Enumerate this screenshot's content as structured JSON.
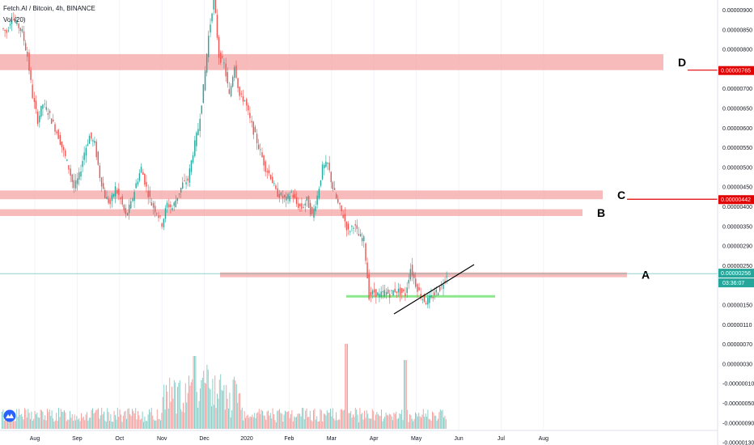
{
  "legend": {
    "title": "Fetch.AI / Bitcoin, 4h, BINANCE",
    "volume": "Vol (20)"
  },
  "colors": {
    "up": "#26a69a",
    "down": "#ef5350",
    "zone": "#f4a4a4",
    "green_zone": "#8de88d",
    "current_price": "#26a69a",
    "level_line": "#e00000"
  },
  "chart_data": {
    "type": "candlestick",
    "price_axis": {
      "ticks": [
        "0.00000900",
        "0.00000850",
        "0.00000800",
        "0.00000750",
        "0.00000700",
        "0.00000650",
        "0.00000600",
        "0.00000550",
        "0.00000500",
        "0.00000450",
        "0.00000400",
        "0.00000350",
        "0.00000290",
        "0.00000250",
        "0.00000190",
        "0.00000150",
        "0.00000110",
        "0.00000070",
        "0.00000030",
        "-0.00000010",
        "-0.00000050",
        "-0.00000090",
        "-0.00000130"
      ]
    },
    "time_axis": {
      "ticks": [
        "Aug",
        "Sep",
        "Oct",
        "Nov",
        "Dec",
        "2020",
        "Feb",
        "Mar",
        "Apr",
        "May",
        "Jun",
        "Jul",
        "Aug"
      ]
    },
    "price_path": [
      [
        0,
        870
      ],
      [
        2,
        860
      ],
      [
        4,
        900
      ],
      [
        6,
        880
      ],
      [
        8,
        860
      ],
      [
        10,
        800
      ],
      [
        12,
        700
      ],
      [
        14,
        640
      ],
      [
        16,
        680
      ],
      [
        18,
        660
      ],
      [
        20,
        630
      ],
      [
        22,
        600
      ],
      [
        24,
        560
      ],
      [
        26,
        520
      ],
      [
        28,
        470
      ],
      [
        30,
        500
      ],
      [
        32,
        560
      ],
      [
        34,
        600
      ],
      [
        36,
        580
      ],
      [
        38,
        500
      ],
      [
        40,
        450
      ],
      [
        42,
        430
      ],
      [
        44,
        470
      ],
      [
        46,
        440
      ],
      [
        48,
        400
      ],
      [
        50,
        430
      ],
      [
        52,
        480
      ],
      [
        54,
        520
      ],
      [
        56,
        470
      ],
      [
        58,
        430
      ],
      [
        60,
        410
      ],
      [
        62,
        380
      ],
      [
        64,
        430
      ],
      [
        66,
        420
      ],
      [
        68,
        450
      ],
      [
        70,
        480
      ],
      [
        72,
        490
      ],
      [
        74,
        560
      ],
      [
        76,
        620
      ],
      [
        78,
        720
      ],
      [
        80,
        850
      ],
      [
        82,
        950
      ],
      [
        84,
        800
      ],
      [
        86,
        780
      ],
      [
        88,
        700
      ],
      [
        90,
        780
      ],
      [
        92,
        700
      ],
      [
        94,
        690
      ],
      [
        96,
        640
      ],
      [
        98,
        600
      ],
      [
        100,
        560
      ],
      [
        102,
        520
      ],
      [
        104,
        500
      ],
      [
        106,
        460
      ],
      [
        108,
        450
      ],
      [
        110,
        440
      ],
      [
        112,
        460
      ],
      [
        114,
        430
      ],
      [
        116,
        420
      ],
      [
        118,
        440
      ],
      [
        120,
        400
      ],
      [
        122,
        450
      ],
      [
        124,
        520
      ],
      [
        126,
        530
      ],
      [
        128,
        470
      ],
      [
        130,
        430
      ],
      [
        132,
        400
      ],
      [
        134,
        360
      ],
      [
        136,
        380
      ],
      [
        138,
        350
      ],
      [
        140,
        340
      ],
      [
        142,
        200
      ],
      [
        144,
        210
      ],
      [
        146,
        200
      ],
      [
        148,
        210
      ],
      [
        150,
        205
      ],
      [
        152,
        215
      ],
      [
        154,
        210
      ],
      [
        156,
        205
      ],
      [
        158,
        270
      ],
      [
        160,
        230
      ],
      [
        162,
        200
      ],
      [
        164,
        185
      ],
      [
        166,
        195
      ],
      [
        168,
        210
      ],
      [
        170,
        225
      ],
      [
        172,
        255
      ]
    ],
    "current_price": "0.00000256",
    "countdown": "03:36:07",
    "zones": [
      {
        "name": "D",
        "label": "D",
        "low": 765,
        "high": 805,
        "price_label": "0.00000765"
      },
      {
        "name": "C",
        "label": "C",
        "low": 442,
        "high": 464,
        "price_label": "0.00000442"
      },
      {
        "name": "B",
        "label": "B",
        "low": 400,
        "high": 417,
        "price_label": ""
      },
      {
        "name": "A",
        "label": "A",
        "low": 248,
        "high": 259,
        "price_label": ""
      }
    ],
    "support": {
      "price": 198
    },
    "trendline": {
      "from": [
        153,
        150
      ],
      "to": [
        183,
        254
      ]
    }
  }
}
